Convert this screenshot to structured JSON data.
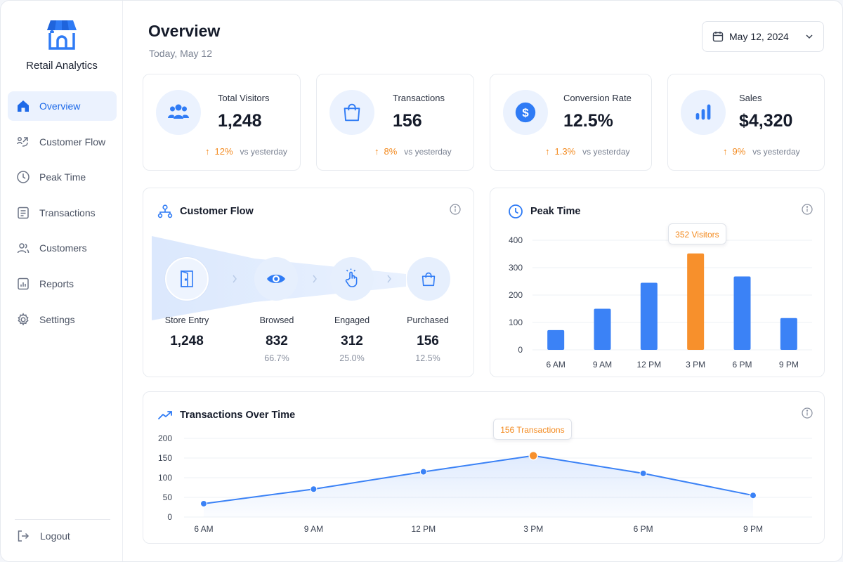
{
  "brand": {
    "name": "Retail Analytics"
  },
  "sidebar": {
    "items": [
      {
        "label": "Overview",
        "icon": "home-icon",
        "active": true
      },
      {
        "label": "Customer Flow",
        "icon": "customer-flow-icon",
        "active": false
      },
      {
        "label": "Peak Time",
        "icon": "clock-icon",
        "active": false
      },
      {
        "label": "Transactions",
        "icon": "receipt-icon",
        "active": false
      },
      {
        "label": "Customers",
        "icon": "users-icon",
        "active": false
      },
      {
        "label": "Reports",
        "icon": "report-icon",
        "active": false
      },
      {
        "label": "Settings",
        "icon": "gear-icon",
        "active": false
      }
    ],
    "logout_label": "Logout"
  },
  "header": {
    "title": "Overview",
    "subtitle": "Today, May 12",
    "date_picker": "May 12, 2024"
  },
  "stats": [
    {
      "label": "Total Visitors",
      "value": "1,248",
      "change": "12%",
      "vs": "vs yesterday",
      "icon": "visitors-icon"
    },
    {
      "label": "Transactions",
      "value": "156",
      "change": "8%",
      "vs": "vs yesterday",
      "icon": "shopping-bag-icon"
    },
    {
      "label": "Conversion Rate",
      "value": "12.5%",
      "change": "1.3%",
      "vs": "vs yesterday",
      "icon": "dollar-icon"
    },
    {
      "label": "Sales",
      "value": "$4,320",
      "change": "9%",
      "vs": "vs yesterday",
      "icon": "bar-chart-icon"
    }
  ],
  "customer_flow": {
    "title": "Customer Flow",
    "stages": [
      {
        "label": "Store Entry",
        "value": "1,248",
        "pct": "",
        "icon": "door-icon"
      },
      {
        "label": "Browsed",
        "value": "832",
        "pct": "66.7%",
        "icon": "eye-icon"
      },
      {
        "label": "Engaged",
        "value": "312",
        "pct": "25.0%",
        "icon": "pointer-hand-icon"
      },
      {
        "label": "Purchased",
        "value": "156",
        "pct": "12.5%",
        "icon": "shopping-bag-icon"
      }
    ]
  },
  "colors": {
    "primary": "#3b82f6",
    "accent": "#f7902c",
    "text": "#151b2a",
    "muted": "#7a8292"
  },
  "chart_data": [
    {
      "type": "bar",
      "title": "Peak Time",
      "categories": [
        "6 AM",
        "9 AM",
        "12 PM",
        "3 PM",
        "6 PM",
        "9 PM"
      ],
      "values": [
        72,
        150,
        245,
        352,
        268,
        116
      ],
      "highlight_index": 3,
      "tooltip": "352 Visitors",
      "ylim": [
        0,
        400
      ],
      "yticks": [
        0,
        100,
        200,
        300,
        400
      ],
      "grid": true
    },
    {
      "type": "line",
      "title": "Transactions Over Time",
      "categories": [
        "6 AM",
        "9 AM",
        "12 PM",
        "3 PM",
        "6 PM",
        "9 PM"
      ],
      "values": [
        34,
        71,
        115,
        156,
        111,
        55
      ],
      "highlight_index": 3,
      "tooltip": "156 Transactions",
      "ylim": [
        0,
        200
      ],
      "yticks": [
        0,
        50,
        100,
        150,
        200
      ],
      "grid": true
    }
  ]
}
